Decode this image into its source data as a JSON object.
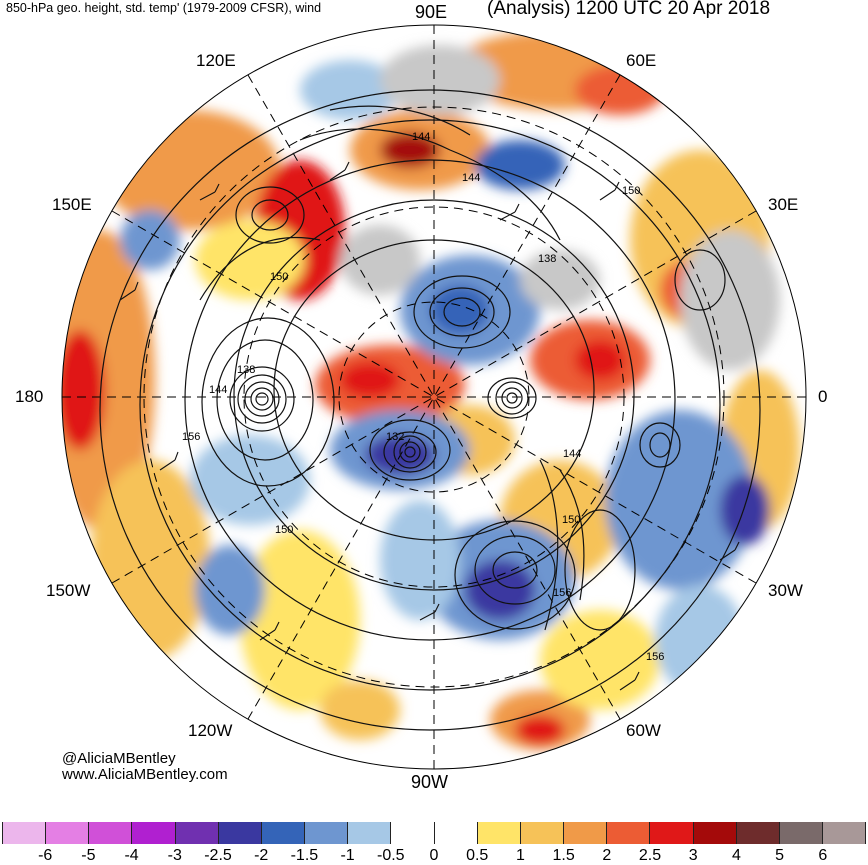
{
  "header": {
    "left_title": "850-hPa geo. height, std. temp' (1979-2009 CFSR), wind",
    "right_title": "(Analysis) 1200 UTC 20 Apr 2018"
  },
  "longitude_labels": {
    "lon_90e": "90E",
    "lon_60e": "60E",
    "lon_120e": "120E",
    "lon_30e": "30E",
    "lon_150e": "150E",
    "lon_180": "180",
    "lon_0": "0",
    "lon_150w": "150W",
    "lon_30w": "30W",
    "lon_120w": "120W",
    "lon_60w": "60W",
    "lon_90w": "90W"
  },
  "contour_labels": {
    "c144_top": "144",
    "c144_top2": "144",
    "c150_ne": "150",
    "c138_ne": "138",
    "c150_w": "150",
    "c138_w": "138",
    "c144_w": "144",
    "c156_w": "156",
    "c132_center": "132",
    "c144_se": "144",
    "c150_se": "150",
    "c150_sw": "150",
    "c156_se": "156",
    "c156_se2": "156"
  },
  "credit": {
    "handle": "@AliciaMBentley",
    "website": "www.AliciaMBentley.com"
  },
  "colorbar": {
    "colors": [
      "#ecb6ec",
      "#e47fe4",
      "#d050d8",
      "#b020d0",
      "#7030b0",
      "#3a38a0",
      "#3464b8",
      "#6e96d0",
      "#a6c8e6",
      "#ffffff",
      "#ffffff",
      "#ffe468",
      "#f6c258",
      "#f09a48",
      "#ec5c34",
      "#e01818",
      "#a40a0a",
      "#6e2c2c",
      "#7a6a6a",
      "#a89898"
    ],
    "labels": [
      "-6",
      "-5",
      "-4",
      "-3",
      "-2.5",
      "-2",
      "-1.5",
      "-1",
      "-0.5",
      "0",
      "0.5",
      "1",
      "1.5",
      "2",
      "2.5",
      "3",
      "4",
      "5",
      "6"
    ]
  },
  "legend_colors": {
    "cold": "#3a5cb0",
    "cool": "#a6c8e6",
    "warm": "#f6c258",
    "hot": "#e01818",
    "land": "#c8c8c8"
  }
}
